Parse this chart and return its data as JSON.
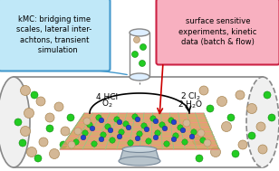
{
  "bg_color": "#ffffff",
  "tube_edge": "#888888",
  "left_box_bg": "#c0e8f8",
  "left_box_edge": "#4499cc",
  "right_box_bg": "#f8b0c0",
  "right_box_edge": "#cc2244",
  "left_box_text": "kMC: bridging time\nscales, lateral inter-\nachtons, transient\n   simulation",
  "right_box_text": "surface sensitive\nexperiments, kinetic\ndata (batch & flow)",
  "label_left": "4 HCl",
  "label_left2": "O₂",
  "label_right": "2 Cl₂",
  "label_right2": "2 H₂O",
  "catalyst_color": "#d4a060",
  "green_mol": "#22cc22",
  "beige_mol": "#d4b896",
  "blue_mol": "#2244cc",
  "red_arrow": "#cc0000",
  "blue_line": "#4499cc",
  "dashed_line": "#666666",
  "pedestal_color": "#b8c4cc",
  "tube_fill": "#f0f0f0"
}
